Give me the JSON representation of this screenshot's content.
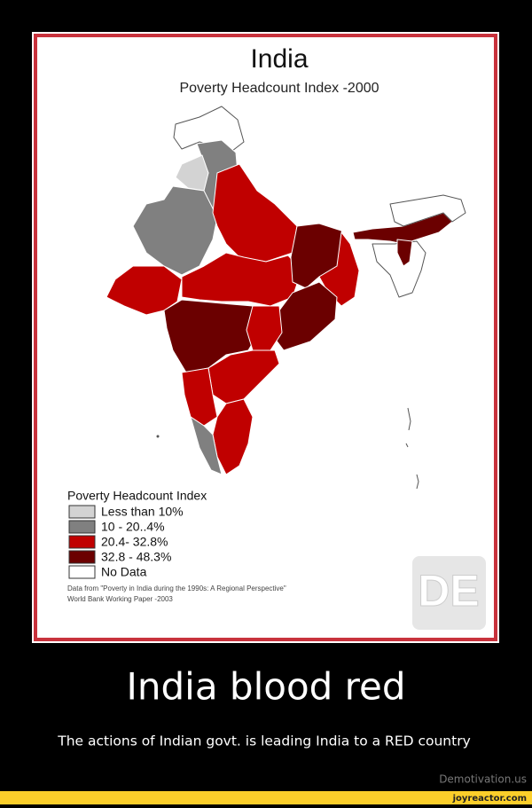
{
  "poster": {
    "title": "India",
    "subtitle": "Poverty Headcount Index -2000",
    "legend": {
      "title": "Poverty Headcount Index",
      "items": [
        "Less than 10%",
        "10 - 20..4%",
        "20.4- 32.8%",
        "32.8 - 48.3%",
        "No Data"
      ]
    },
    "source": [
      "Data from \"Poverty in India during the 1990s: A Regional Perspective\"",
      "World Bank Working Paper -2003"
    ],
    "logo": "DE",
    "caption": "India blood red",
    "subcaption": "The actions of Indian govt. is leading India to a RED country"
  },
  "footer": {
    "site": "Demotivation.us",
    "watermark": "joyreactor.com"
  }
}
